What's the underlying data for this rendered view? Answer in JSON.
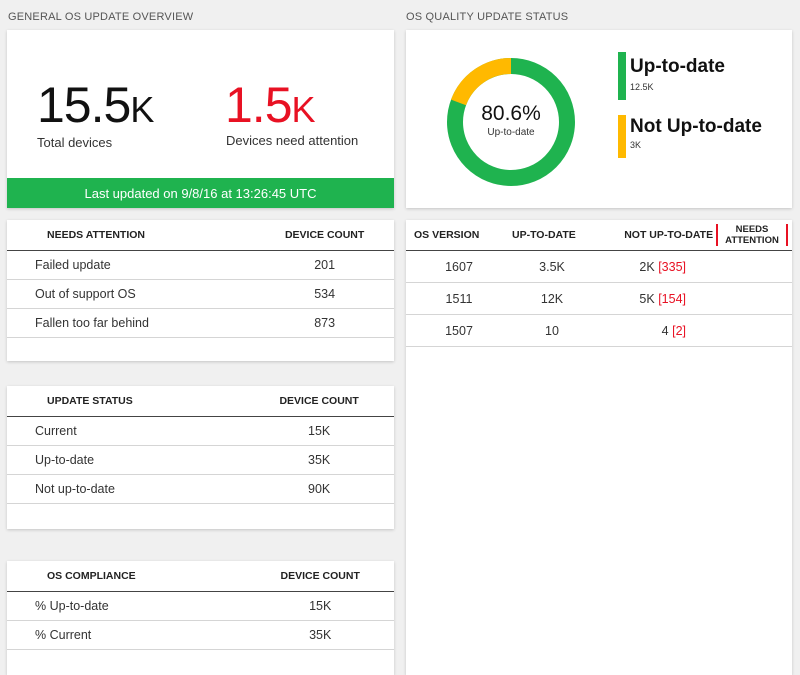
{
  "overview": {
    "section_title": "GENERAL OS UPDATE OVERVIEW",
    "total_devices_value": "15.5",
    "total_devices_unit": "K",
    "total_devices_label": "Total devices",
    "attention_value": "1.5",
    "attention_unit": "K",
    "attention_label": "Devices need attention",
    "last_updated": "Last updated on 9/8/16 at 13:26:45 UTC"
  },
  "quality": {
    "section_title": "OS QUALITY UPDATE STATUS",
    "percent": "80.6%",
    "percent_label": "Up-to-date",
    "percent_value": 80.6,
    "legend": [
      {
        "label": "Up-to-date",
        "count": "12.5K",
        "color": "#1fb34f"
      },
      {
        "label": "Not Up-to-date",
        "count": "3K",
        "color": "#ffb900"
      }
    ]
  },
  "needs_attention": {
    "headers": [
      "NEEDS ATTENTION",
      "DEVICE COUNT"
    ],
    "rows": [
      [
        "Failed update",
        "201"
      ],
      [
        "Out of support OS",
        "534"
      ],
      [
        "Fallen too far behind",
        "873"
      ]
    ]
  },
  "update_status": {
    "headers": [
      "UPDATE STATUS",
      "DEVICE COUNT"
    ],
    "rows": [
      [
        "Current",
        "15K"
      ],
      [
        "Up-to-date",
        "35K"
      ],
      [
        "Not up-to-date",
        "90K"
      ]
    ]
  },
  "os_compliance": {
    "headers": [
      "OS COMPLIANCE",
      "DEVICE COUNT"
    ],
    "rows": [
      [
        "% Up-to-date",
        "15K"
      ],
      [
        "% Current",
        "35K"
      ]
    ]
  },
  "os_versions": {
    "headers": [
      "OS VERSION",
      "UP-TO-DATE",
      "NOT UP-TO-DATE",
      "NEEDS ATTENTION"
    ],
    "rows": [
      {
        "version": "1607",
        "up": "3.5K",
        "not_up": "2K",
        "attention": "[335]"
      },
      {
        "version": "1511",
        "up": "12K",
        "not_up": "5K",
        "attention": "[154]"
      },
      {
        "version": "1507",
        "up": "10",
        "not_up": "4",
        "attention": "[2]"
      }
    ]
  }
}
